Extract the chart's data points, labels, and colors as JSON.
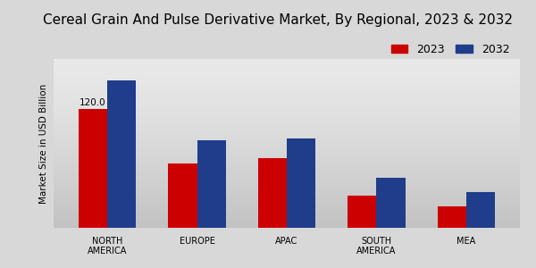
{
  "title": "Cereal Grain And Pulse Derivative Market, By Regional, 2023 & 2032",
  "categories": [
    "NORTH\nAMERICA",
    "EUROPE",
    "APAC",
    "SOUTH\nAMERICA",
    "MEA"
  ],
  "values_2023": [
    120.0,
    65.0,
    70.0,
    32.0,
    22.0
  ],
  "values_2032": [
    148.0,
    88.0,
    90.0,
    50.0,
    36.0
  ],
  "color_2023": "#cc0000",
  "color_2032": "#1f3d8a",
  "ylabel": "Market Size in USD Billion",
  "legend_2023": "2023",
  "legend_2032": "2032",
  "annotation_value": "120.0",
  "bg_top": "#f5f5f5",
  "bg_bottom": "#d0d0d0",
  "ylim": [
    0,
    170
  ],
  "bar_width": 0.32,
  "title_fontsize": 11.0,
  "axis_label_fontsize": 7.5,
  "tick_fontsize": 7.0,
  "legend_fontsize": 9,
  "annotation_fontsize": 7.5
}
